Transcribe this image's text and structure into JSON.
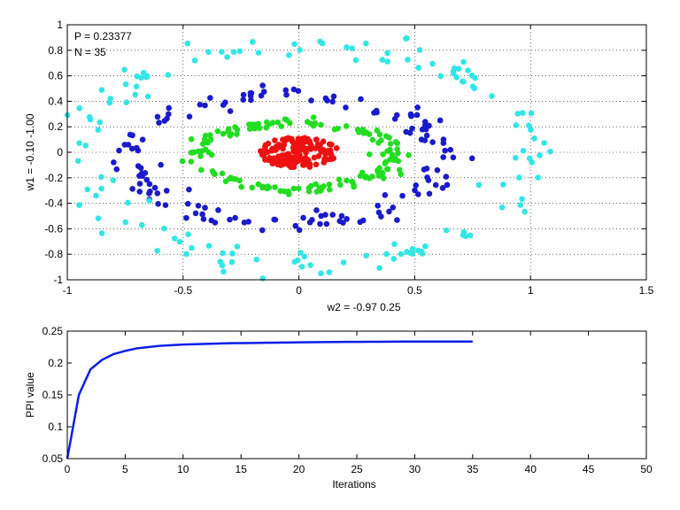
{
  "colors": {
    "cyan": "#33e6e6",
    "blue": "#1a1acc",
    "green": "#22dd22",
    "red": "#ee1111",
    "line": "#0a1ee6",
    "grid": "#000000"
  },
  "chart_data": [
    {
      "type": "scatter",
      "xlabel": "w2 = -0.97  0.25",
      "ylabel": "w1 = -0.10  -1.00",
      "xlim": [
        -1,
        1.5
      ],
      "ylim": [
        -1,
        1
      ],
      "xticks": [
        -1,
        -0.5,
        0,
        0.5,
        1,
        1.5
      ],
      "yticks": [
        -1,
        -0.8,
        -0.6,
        -0.4,
        -0.2,
        0,
        0.2,
        0.4,
        0.6,
        0.8,
        1
      ],
      "xtick_labels": [
        "-1",
        "-0.5",
        "0",
        "0.5",
        "1",
        "1.5"
      ],
      "ytick_labels": [
        "-1",
        "-0.8",
        "-0.6",
        "-0.4",
        "-0.2",
        "0",
        "0.2",
        "0.4",
        "0.6",
        "0.8",
        "1"
      ],
      "grid": true,
      "annotations": [
        "P = 0.23377",
        "N = 35"
      ],
      "rings": [
        {
          "color": "red",
          "center": [
            0,
            0
          ],
          "rx": 0.17,
          "ry": 0.12,
          "count": 150,
          "filled": true
        },
        {
          "color": "green",
          "center": [
            -0.02,
            -0.03
          ],
          "rx": 0.43,
          "ry": 0.26,
          "count": 150
        },
        {
          "color": "blue",
          "center": [
            -0.05,
            -0.05
          ],
          "rx": 0.67,
          "ry": 0.5,
          "count": 150
        },
        {
          "color": "cyan",
          "center": [
            0.02,
            -0.02
          ],
          "rx": 0.98,
          "ry": 0.85,
          "count": 150
        }
      ]
    },
    {
      "type": "line",
      "xlabel": "Iterations",
      "ylabel": "PPI value",
      "xlim": [
        0,
        50
      ],
      "ylim": [
        0.05,
        0.25
      ],
      "xticks": [
        0,
        5,
        10,
        15,
        20,
        25,
        30,
        35,
        40,
        45,
        50
      ],
      "yticks": [
        0.05,
        0.1,
        0.15,
        0.2,
        0.25
      ],
      "xtick_labels": [
        "0",
        "5",
        "10",
        "15",
        "20",
        "25",
        "30",
        "35",
        "40",
        "45",
        "50"
      ],
      "ytick_labels": [
        "0.05",
        "0.1",
        "0.15",
        "0.2",
        "0.25"
      ],
      "grid": false,
      "series": [
        {
          "x": [
            0,
            1,
            2,
            3,
            4,
            5,
            6,
            7,
            8,
            9,
            10,
            11,
            12,
            13,
            14,
            15,
            16,
            17,
            18,
            19,
            20,
            21,
            22,
            23,
            24,
            25,
            26,
            27,
            28,
            29,
            30,
            31,
            32,
            33,
            34,
            35
          ],
          "values": [
            0.05,
            0.15,
            0.19,
            0.205,
            0.214,
            0.219,
            0.223,
            0.225,
            0.227,
            0.228,
            0.229,
            0.2295,
            0.23,
            0.2305,
            0.231,
            0.2312,
            0.2315,
            0.2318,
            0.232,
            0.2322,
            0.2324,
            0.2326,
            0.2328,
            0.233,
            0.2331,
            0.2332,
            0.2333,
            0.2334,
            0.2335,
            0.2336,
            0.2336,
            0.2337,
            0.2337,
            0.2337,
            0.23377,
            0.23377
          ]
        }
      ]
    }
  ]
}
